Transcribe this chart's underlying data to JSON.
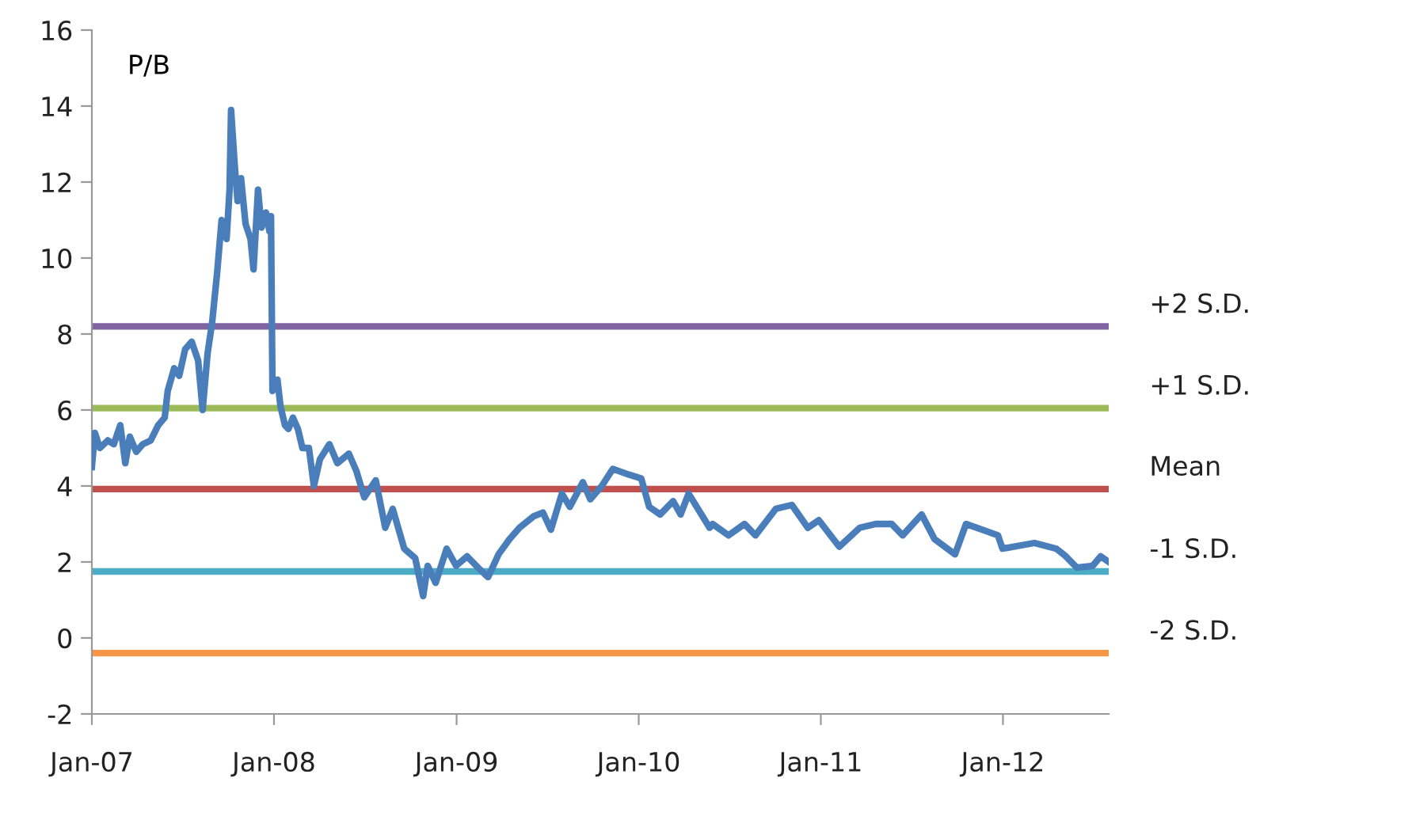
{
  "chart_data": {
    "type": "line",
    "ylabel": "P/B",
    "x": [
      "2007-01-01",
      "2007-01-07",
      "2007-01-17",
      "2007-02-02",
      "2007-02-14",
      "2007-02-27",
      "2007-03-09",
      "2007-03-18",
      "2007-03-31",
      "2007-04-13",
      "2007-04-29",
      "2007-05-14",
      "2007-05-27",
      "2007-06-02",
      "2007-06-15",
      "2007-06-25",
      "2007-07-07",
      "2007-07-20",
      "2007-08-02",
      "2007-08-11",
      "2007-08-21",
      "2007-08-30",
      "2007-09-09",
      "2007-09-18",
      "2007-09-28",
      "2007-10-04",
      "2007-10-07",
      "2007-10-14",
      "2007-10-20",
      "2007-10-27",
      "2007-11-05",
      "2007-11-15",
      "2007-11-21",
      "2007-11-30",
      "2007-12-07",
      "2007-12-16",
      "2007-12-23",
      "2007-12-26",
      "2007-12-29",
      "2008-01-08",
      "2008-01-14",
      "2008-01-23",
      "2008-01-30",
      "2008-02-08",
      "2008-02-18",
      "2008-02-27",
      "2008-03-11",
      "2008-03-21",
      "2008-04-02",
      "2008-04-21",
      "2008-05-07",
      "2008-05-30",
      "2008-06-14",
      "2008-06-30",
      "2008-07-23",
      "2008-08-11",
      "2008-08-26",
      "2008-09-18",
      "2008-10-10",
      "2008-10-26",
      "2008-11-04",
      "2008-11-20",
      "2008-12-12",
      "2008-12-31",
      "2009-01-22",
      "2009-02-13",
      "2009-03-05",
      "2009-03-26",
      "2009-04-17",
      "2009-05-07",
      "2009-06-04",
      "2009-06-23",
      "2009-07-09",
      "2009-07-31",
      "2009-08-16",
      "2009-09-11",
      "2009-09-26",
      "2009-10-19",
      "2009-11-10",
      "2009-12-12",
      "2010-01-06",
      "2010-01-22",
      "2010-02-13",
      "2010-03-11",
      "2010-03-26",
      "2010-04-11",
      "2010-05-23",
      "2010-05-29",
      "2010-06-30",
      "2010-08-01",
      "2010-08-23",
      "2010-10-03",
      "2010-11-04",
      "2010-12-06",
      "2010-12-28",
      "2011-02-07",
      "2011-03-20",
      "2011-04-21",
      "2011-05-23",
      "2011-06-14",
      "2011-07-22",
      "2011-08-17",
      "2011-09-27",
      "2011-10-19",
      "2011-11-20",
      "2011-12-22",
      "2011-12-31",
      "2012-03-04",
      "2012-04-17",
      "2012-05-06",
      "2012-05-28",
      "2012-06-29",
      "2012-07-15",
      "2012-07-31"
    ],
    "series": [
      {
        "color": "#4a7ebb",
        "values": [
          4.5,
          5.4,
          5.0,
          5.2,
          5.1,
          5.6,
          4.6,
          5.3,
          4.9,
          5.1,
          5.2,
          5.6,
          5.8,
          6.5,
          7.1,
          6.9,
          7.6,
          7.8,
          7.3,
          6.0,
          7.5,
          8.3,
          9.6,
          11.0,
          10.5,
          11.8,
          13.9,
          12.5,
          11.5,
          12.1,
          10.9,
          10.5,
          9.7,
          11.8,
          10.8,
          11.2,
          10.7,
          11.1,
          6.5,
          6.8,
          6.1,
          5.6,
          5.5,
          5.8,
          5.5,
          5.0,
          5.0,
          4.0,
          4.7,
          5.1,
          4.6,
          4.85,
          4.4,
          3.7,
          4.15,
          2.9,
          3.4,
          2.35,
          2.1,
          1.1,
          1.9,
          1.45,
          2.35,
          1.9,
          2.15,
          1.85,
          1.6,
          2.2,
          2.6,
          2.9,
          3.2,
          3.3,
          2.85,
          3.8,
          3.45,
          4.1,
          3.65,
          4.0,
          4.45,
          4.3,
          4.2,
          3.45,
          3.25,
          3.6,
          3.25,
          3.8,
          2.9,
          3.0,
          2.7,
          3.0,
          2.7,
          3.4,
          3.5,
          2.9,
          3.1,
          2.4,
          2.9,
          3.0,
          3.0,
          2.7,
          3.25,
          2.6,
          2.2,
          3.0,
          2.85,
          2.7,
          2.35,
          2.5,
          2.35,
          2.15,
          1.85,
          1.9,
          2.15,
          2.0
        ]
      }
    ],
    "xlim": [
      "2007-01-01",
      "2012-07-31"
    ],
    "xticks": [
      {
        "value": "2007-01-01",
        "label": "Jan-07"
      },
      {
        "value": "2008-01-01",
        "label": "Jan-08"
      },
      {
        "value": "2009-01-01",
        "label": "Jan-09"
      },
      {
        "value": "2010-01-01",
        "label": "Jan-10"
      },
      {
        "value": "2011-01-01",
        "label": "Jan-11"
      },
      {
        "value": "2012-01-01",
        "label": "Jan-12"
      }
    ],
    "ylim": [
      -2,
      16
    ],
    "yticks": [
      -2,
      0,
      2,
      4,
      6,
      8,
      10,
      12,
      14,
      16
    ],
    "ref_lines": [
      {
        "axis": "y",
        "value": 8.2,
        "label": "+2 S.D.",
        "color": "#8064a2"
      },
      {
        "axis": "y",
        "value": 6.05,
        "label": "+1 S.D.",
        "color": "#9bbb59"
      },
      {
        "axis": "y",
        "value": 3.92,
        "label": "Mean",
        "color": "#c0504d"
      },
      {
        "axis": "y",
        "value": 1.75,
        "label": "-1 S.D.",
        "color": "#4bacc6"
      },
      {
        "axis": "y",
        "value": -0.4,
        "label": "-2 S.D.",
        "color": "#f79646"
      }
    ],
    "grid": false,
    "legend": false,
    "line_style": "solid",
    "marker": "none"
  }
}
